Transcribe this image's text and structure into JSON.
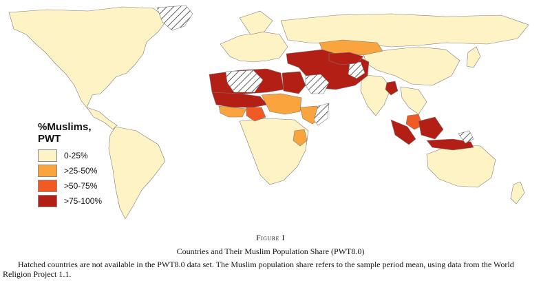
{
  "figure": {
    "label": "Figure I",
    "title": "Countries and Their Muslim Population Share (PWT8.0)",
    "note": "Hatched countries are not available in the PWT8.0 data set. The Muslim population share refers to the sample period mean, using data from the World Religion Project 1.1."
  },
  "legend": {
    "title_line1": "%Muslims,",
    "title_line2": "PWT",
    "items": [
      {
        "label": "0-25%",
        "color": "#fdf3c4"
      },
      {
        "label": ">25-50%",
        "color": "#f9a43c"
      },
      {
        "label": ">50-75%",
        "color": "#f25a24"
      },
      {
        "label": ">75-100%",
        "color": "#b31f15"
      }
    ]
  },
  "colors": {
    "ocean": "#ffffff",
    "land": "#fdf3c4",
    "border": "#7a7a7a",
    "no_data": "hatched"
  }
}
